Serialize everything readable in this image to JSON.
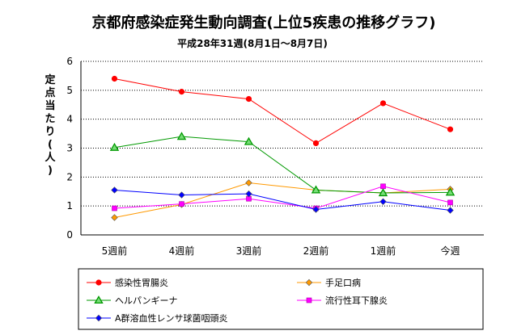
{
  "chart_data": {
    "type": "line",
    "title": "京都府感染症発生動向調査(上位5疾患の推移グラフ)",
    "subtitle": "平成28年31週(8月1日～8月7日)",
    "ylabel": "定点当たり(人)",
    "ylabel_chars": [
      "定",
      "点",
      "当",
      "た",
      "り",
      "(",
      "人",
      ")"
    ],
    "categories": [
      "5週前",
      "4週前",
      "3週前",
      "2週前",
      "1週前",
      "今週"
    ],
    "ylim": [
      0,
      6
    ],
    "yticks": [
      0,
      1,
      2,
      3,
      4,
      5,
      6
    ],
    "yticklabels": [
      "0",
      "1",
      "2",
      "3",
      "4",
      "5",
      "6"
    ],
    "grid": true,
    "legend_position": "bottom",
    "series": [
      {
        "name": "感染性胃腸炎",
        "values": [
          5.4,
          4.95,
          4.7,
          3.17,
          4.55,
          3.65
        ],
        "color": "#ff0000",
        "marker": "circle"
      },
      {
        "name": "手足口病",
        "values": [
          0.6,
          1.05,
          1.8,
          1.55,
          1.45,
          1.58
        ],
        "color": "#ff9900",
        "marker": "diamond"
      },
      {
        "name": "ヘルパンギーナ",
        "values": [
          3.02,
          3.4,
          3.22,
          1.55,
          1.45,
          1.47
        ],
        "color": "#009900",
        "marker": "triangle"
      },
      {
        "name": "流行性耳下腺炎",
        "values": [
          0.92,
          1.07,
          1.25,
          0.92,
          1.68,
          1.12
        ],
        "color": "#ff00ff",
        "marker": "square"
      },
      {
        "name": "A群溶血性レンサ球菌咽頭炎",
        "values": [
          1.55,
          1.38,
          1.42,
          0.88,
          1.15,
          0.85
        ],
        "color": "#0000ff",
        "marker": "diamond"
      }
    ]
  }
}
